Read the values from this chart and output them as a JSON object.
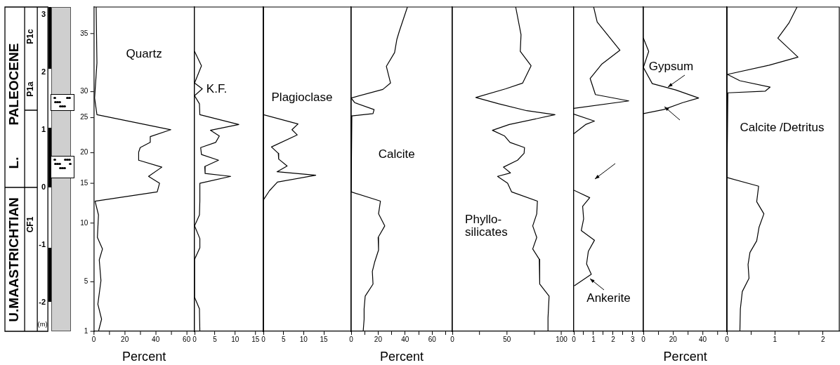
{
  "chart_data": [
    {
      "type": "line",
      "title": "Quartz",
      "xlabel": "Percent",
      "marker": "none",
      "xlim": [
        0,
        65
      ],
      "xticks": [
        0,
        {
          "value": 10,
          "label": null
        },
        20,
        {
          "value": 30,
          "label": null
        },
        40,
        {
          "value": 50,
          "label": null
        },
        60
      ],
      "ylim": [
        -2.5,
        3.13
      ],
      "yticks": [
        -2,
        -1,
        0,
        1,
        2,
        3
      ],
      "annotations": [
        "U.MAASTRICHTIAN",
        "L.",
        "PALEOCENE",
        "P1c",
        "P1a",
        "CF1",
        "(m)",
        "1",
        "5",
        "10",
        "15",
        "20",
        "25",
        "30",
        "35"
      ],
      "series": [
        {
          "color": "#000000",
          "x": [
            1.5,
            2,
            0.5,
            2,
            49.8,
            36.5,
            36.5,
            30,
            29,
            29,
            44,
            35.4,
            42.5,
            41,
            0.8,
            3,
            2.3,
            5.6,
            3.5,
            4.6,
            2.6,
            5,
            3
          ],
          "values": [
            3.13,
            2.16,
            1.55,
            1.26,
            1.0,
            0.88,
            0.78,
            0.69,
            0.61,
            0.47,
            0.35,
            0.19,
            0.07,
            -0.08,
            -0.24,
            -0.48,
            -0.87,
            -1.07,
            -1.26,
            -1.62,
            -2.03,
            -2.29,
            -2.5
          ]
        }
      ]
    },
    {
      "type": "line",
      "title": "K.F.",
      "marker": "none",
      "tick_labels": "x",
      "xlim": [
        0,
        17
      ],
      "xticks": [
        0,
        5,
        10,
        15
      ],
      "ylim": [
        -2.5,
        3.13
      ],
      "series": [
        {
          "color": "#000000",
          "x": [
            0,
            1.7,
            0,
            1.9,
            0,
            1.2,
            1.3,
            10.9,
            3.9,
            6.1,
            5.2,
            1.5,
            1.7,
            5.9,
            2.5,
            2.6,
            8.9,
            1.3,
            1.3,
            1.2,
            0,
            1.3,
            1.3,
            0,
            0,
            1.2,
            1.3
          ],
          "values": [
            2.36,
            2.11,
            1.81,
            1.71,
            1.59,
            1.45,
            1.26,
            1.09,
            0.99,
            0.89,
            0.78,
            0.69,
            0.57,
            0.47,
            0.36,
            0.24,
            0.19,
            0.07,
            -0.24,
            -0.48,
            -0.67,
            -0.89,
            -1.05,
            -1.25,
            -1.91,
            -2.11,
            -2.5
          ]
        }
      ]
    },
    {
      "type": "line",
      "title": "Plagioclase",
      "marker": "none",
      "tick_labels": "x",
      "xlim": [
        0,
        21.8
      ],
      "xticks": [
        0,
        5,
        10,
        15
      ],
      "ylim": [
        -2.5,
        3.13
      ],
      "series": [
        {
          "color": "#000000",
          "x": [
            0,
            8.6,
            7.1,
            8.4,
            2.0,
            3.7,
            3.8,
            5.9,
            3.4,
            13.0,
            3.5,
            1.5,
            0
          ],
          "values": [
            1.26,
            1.1,
            1.0,
            0.91,
            0.7,
            0.59,
            0.49,
            0.37,
            0.27,
            0.21,
            0.09,
            -0.06,
            -0.22
          ]
        }
      ]
    },
    {
      "type": "line",
      "title": "Calcite",
      "xlabel": "Percent",
      "marker": "none",
      "tick_labels": "x",
      "xlim": [
        0,
        75
      ],
      "xticks": [
        0,
        {
          "value": 10,
          "label": null
        },
        20,
        {
          "value": 30,
          "label": null
        },
        40,
        {
          "value": 50,
          "label": null
        },
        60,
        {
          "value": 70,
          "label": null
        }
      ],
      "ylim": [
        -2.5,
        3.13
      ],
      "series": [
        {
          "color": "#000000",
          "x": [
            41.7,
            35.7,
            33.9,
            32.2,
            26.1,
            29.2,
            23.5,
            0,
            2.6,
            17.0,
            16.2,
            0.5,
            0,
            21.7,
            20.3,
            24.9,
            20.0,
            20.3,
            17.4,
            15.7,
            16.2,
            10.4,
            9.6,
            9.6,
            8.9
          ],
          "values": [
            3.13,
            2.71,
            2.57,
            2.34,
            2.1,
            1.81,
            1.7,
            1.55,
            1.47,
            1.35,
            1.28,
            1.24,
            -0.08,
            -0.24,
            -0.46,
            -0.67,
            -0.87,
            -1.09,
            -1.3,
            -1.46,
            -1.68,
            -1.89,
            -2.11,
            -2.29,
            -2.5
          ]
        }
      ]
    },
    {
      "type": "line",
      "title": "Phyllo-silicates",
      "marker": "none",
      "tick_labels": "x",
      "xlim": [
        0,
        111
      ],
      "xticks": [
        0,
        {
          "value": 25,
          "label": null
        },
        50,
        {
          "value": 75,
          "label": null
        },
        100
      ],
      "ylim": [
        -2.5,
        3.13
      ],
      "series": [
        {
          "color": "#000000",
          "x": [
            58,
            62.9,
            62.2,
            72.1,
            64.4,
            48.9,
            21.5,
            42.5,
            68.2,
            94,
            52.1,
            36.7,
            47.9,
            52.8,
            66.1,
            65.7,
            59.7,
            46.8,
            53.2,
            41.4,
            50.6,
            54.3,
            77.9,
            77.3,
            73.6,
            77.3,
            73.6,
            79.6,
            80,
            88.6,
            87.6,
            87.6
          ],
          "values": [
            3.13,
            2.65,
            2.36,
            2.11,
            1.81,
            1.71,
            1.56,
            1.45,
            1.33,
            1.26,
            1.09,
            0.99,
            0.89,
            0.78,
            0.69,
            0.59,
            0.47,
            0.35,
            0.25,
            0.19,
            0.07,
            -0.08,
            -0.24,
            -0.46,
            -0.67,
            -0.87,
            -1.07,
            -1.25,
            -1.68,
            -1.89,
            -2.27,
            -2.5
          ]
        }
      ]
    },
    {
      "type": "line",
      "title": "Ankerite",
      "marker": "none",
      "tick_labels": "x",
      "xlim": [
        0,
        3.54
      ],
      "xticks": [
        0,
        {
          "value": 0.5,
          "label": null
        },
        1,
        {
          "value": 1.5,
          "label": null
        },
        2,
        {
          "value": 2.5,
          "label": null
        },
        3
      ],
      "ylim": [
        -2.5,
        3.13
      ],
      "series": [
        {
          "color": "#000000",
          "x": [
            1.01,
            1.19,
            2.35,
            1.43,
            0.83,
            1.1,
            2.8,
            0,
            null,
            0,
            1.05,
            0.6,
            0,
            null,
            0,
            0.81,
            0.45,
            0.5,
            0.38,
            1.05,
            0.74,
            0.65,
            0.89,
            0.02
          ],
          "values": [
            3.13,
            2.87,
            2.38,
            2.14,
            1.89,
            1.61,
            1.5,
            1.37,
            null,
            1.27,
            1.15,
            1.09,
            0.93,
            null,
            -0.05,
            -0.18,
            -0.33,
            -0.55,
            -0.75,
            -0.92,
            -1.11,
            -1.33,
            -1.51,
            -1.71
          ]
        }
      ]
    },
    {
      "type": "line",
      "title": "Gypsum",
      "xlabel": "Percent",
      "marker": "none",
      "tick_labels": "x",
      "xlim": [
        0,
        56.5
      ],
      "xticks": [
        0,
        {
          "value": 10,
          "label": null
        },
        20,
        {
          "value": 30,
          "label": null
        },
        40,
        {
          "value": 50,
          "label": null
        }
      ],
      "ylim": [
        -2.5,
        3.13
      ],
      "series": [
        {
          "color": "#000000",
          "x": [
            0,
            3.6,
            0,
            6.0,
            21.8,
            37.3,
            26.5,
            13.6,
            0
          ],
          "values": [
            2.59,
            2.36,
            2.08,
            1.8,
            1.69,
            1.55,
            1.47,
            1.35,
            1.28
          ]
        }
      ]
    },
    {
      "type": "line",
      "title": "Calcite /Detritus",
      "marker": "none",
      "tick_labels": "x",
      "xlim": [
        0,
        2.34
      ],
      "xticks": [
        0,
        {
          "value": 0.5,
          "label": null
        },
        1,
        {
          "value": 1.5,
          "label": null
        },
        2
      ],
      "ylim": [
        -2.5,
        3.13
      ],
      "series": [
        {
          "color": "#000000",
          "x": [
            1.46,
            1.29,
            1.06,
            1.48,
            0.88,
            0.01,
            0.27,
            0.9,
            0.8,
            0.02,
            0,
            0.66,
            0.62,
            0.77,
            0.67,
            0.62,
            0.48,
            0.44,
            0.46,
            0.32,
            0.28,
            0.27
          ],
          "values": [
            3.13,
            2.85,
            2.59,
            2.26,
            2.12,
            1.96,
            1.85,
            1.74,
            1.67,
            1.64,
            0.17,
            0.02,
            -0.25,
            -0.46,
            -0.69,
            -0.93,
            -1.13,
            -1.34,
            -1.58,
            -1.81,
            -2.11,
            -2.5
          ]
        }
      ]
    }
  ]
}
